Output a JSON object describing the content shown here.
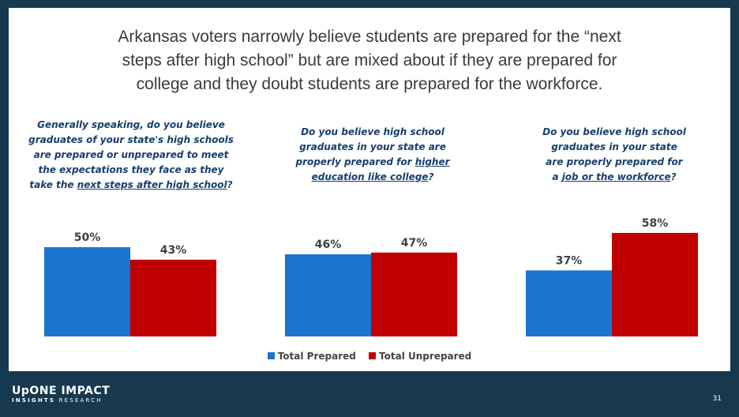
{
  "title_lines": [
    "Arkansas voters narrowly believe students are prepared for the “next",
    "steps after high school” but are mixed about if they are prepared for",
    "college and they doubt students are prepared for the workforce."
  ],
  "questions": [
    {
      "lines": [
        "Generally speaking, do you believe",
        "graduates of your state's high schools",
        "are prepared or unprepared to meet",
        "the expectations they face as they"
      ],
      "last_pre": "take the ",
      "underline": "next steps after high school",
      "last_post": "?"
    },
    {
      "lines": [
        "Do you believe high school",
        "graduates in your state are"
      ],
      "line3_pre": "properly prepared for ",
      "line3_underline": "higher",
      "last_underline": "education like college",
      "last_post": "?"
    },
    {
      "lines": [
        "Do you believe high school",
        "graduates in your state",
        "are properly prepared for"
      ],
      "last_pre": "a ",
      "underline": "job or the workforce",
      "last_post": "?"
    }
  ],
  "legend": {
    "prepared": "Total Prepared",
    "unprepared": "Total Unprepared"
  },
  "colors": {
    "prepared": "#1a75cf",
    "unprepared": "#c00000",
    "background": "#16394f",
    "question_text": "#163e6d"
  },
  "chart_data": [
    {
      "type": "bar",
      "series": [
        {
          "name": "Total Prepared",
          "values": [
            50
          ],
          "labels": [
            "50%"
          ]
        },
        {
          "name": "Total Unprepared",
          "values": [
            43
          ],
          "labels": [
            "43%"
          ]
        }
      ],
      "ylim": [
        0,
        70
      ]
    },
    {
      "type": "bar",
      "series": [
        {
          "name": "Total Prepared",
          "values": [
            46
          ],
          "labels": [
            "46%"
          ]
        },
        {
          "name": "Total Unprepared",
          "values": [
            47
          ],
          "labels": [
            "47%"
          ]
        }
      ],
      "ylim": [
        0,
        70
      ]
    },
    {
      "type": "bar",
      "series": [
        {
          "name": "Total Prepared",
          "values": [
            37
          ],
          "labels": [
            "37%"
          ]
        },
        {
          "name": "Total Unprepared",
          "values": [
            58
          ],
          "labels": [
            "58%"
          ]
        }
      ],
      "ylim": [
        0,
        70
      ]
    }
  ],
  "logo": {
    "top": "UpONE IMPACT",
    "bottom_bold": "INSIGHTS",
    "bottom_rest": " RESEARCH"
  },
  "page_number": "31"
}
